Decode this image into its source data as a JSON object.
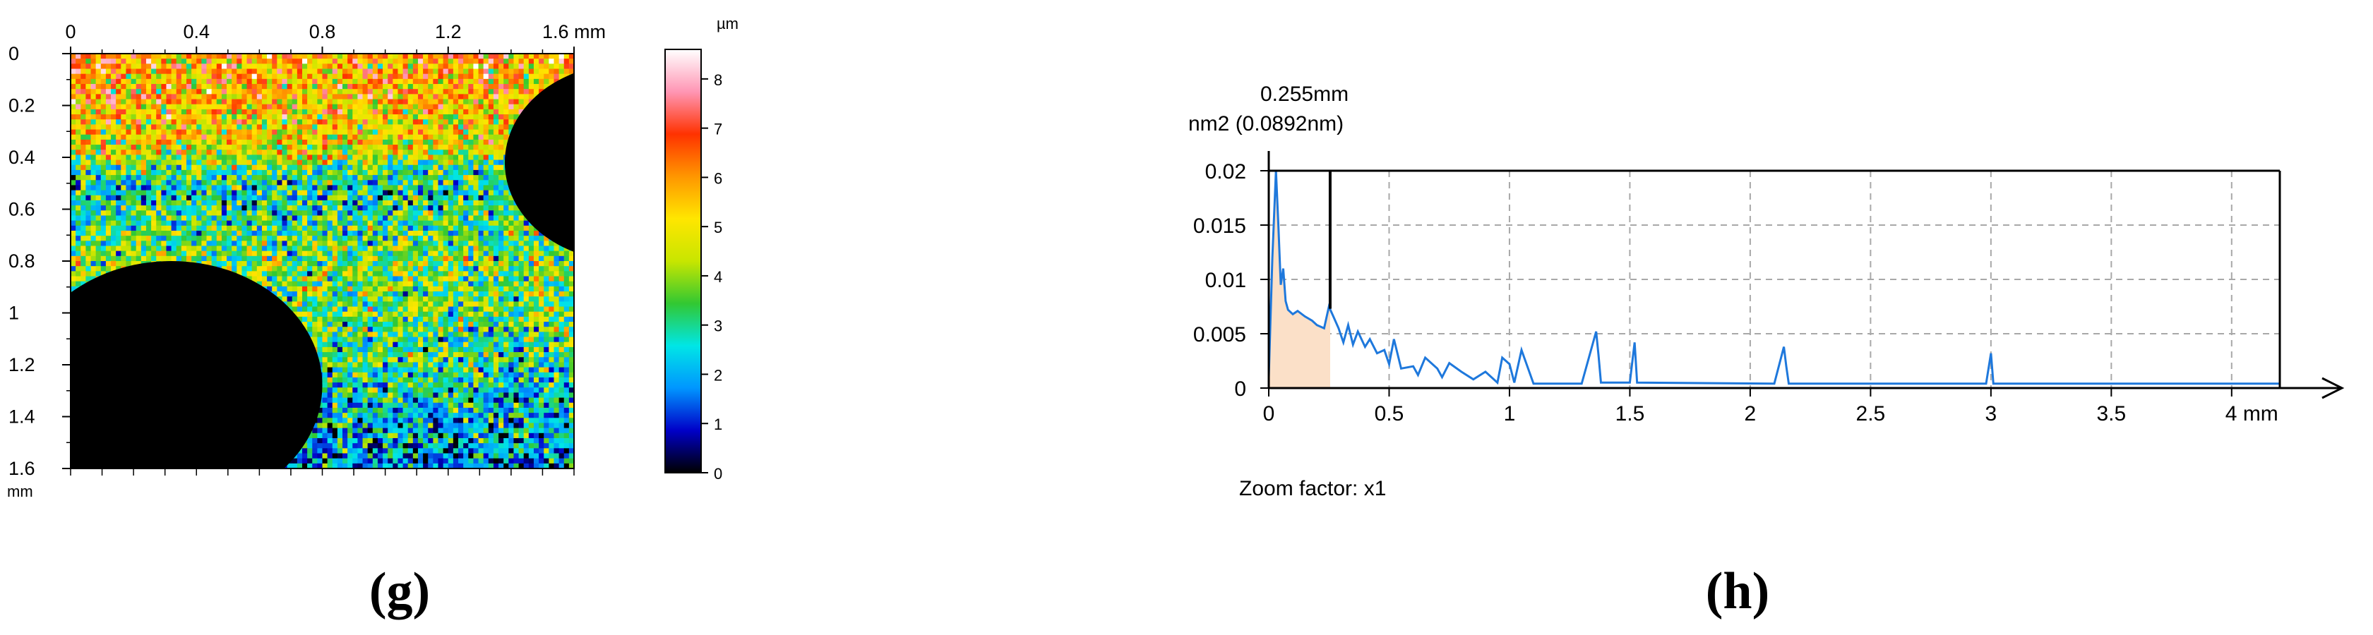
{
  "chart_data": [
    {
      "type": "heatmap",
      "panel_label": "(g)",
      "x_ticks": [
        "0",
        "0.4",
        "0.8",
        "1.2",
        "1.6 mm"
      ],
      "y_ticks": [
        "0",
        "0.2",
        "0.4",
        "0.6",
        "0.8",
        "1",
        "1.2",
        "1.4",
        "1.6"
      ],
      "y_unit": "mm",
      "xlim": [
        0,
        1.6
      ],
      "ylim": [
        0,
        1.6
      ],
      "colorbar": {
        "unit": "µm",
        "ticks": [
          "0",
          "1",
          "2",
          "3",
          "4",
          "5",
          "6",
          "7",
          "8"
        ],
        "range": [
          0,
          8.6
        ],
        "stops": [
          "#000000",
          "#0000c8",
          "#0096ff",
          "#00e6e6",
          "#32c832",
          "#c8e600",
          "#ffe600",
          "#ff9600",
          "#ff3200",
          "#ff96b4",
          "#ffffff"
        ]
      },
      "masked_regions": [
        {
          "shape": "circle",
          "cx": 0.32,
          "cy": 1.28,
          "r": 0.48
        },
        {
          "shape": "circle",
          "cx": 1.76,
          "cy": 0.42,
          "r": 0.38
        }
      ],
      "surface_trend": [
        {
          "y": 0.0,
          "mean": 6.0
        },
        {
          "y": 0.35,
          "mean": 5.0
        },
        {
          "y": 0.5,
          "mean": 2.6
        },
        {
          "y": 0.8,
          "mean": 3.8
        },
        {
          "y": 1.1,
          "mean": 3.5
        },
        {
          "y": 1.3,
          "mean": 2.6
        },
        {
          "y": 1.6,
          "mean": 1.6
        }
      ]
    },
    {
      "type": "line",
      "panel_label": "(h)",
      "x_ticks": [
        "0",
        "0.5",
        "1",
        "1.5",
        "2",
        "2.5",
        "3",
        "3.5",
        "4 mm"
      ],
      "y_ticks": [
        "0",
        "0.005",
        "0.01",
        "0.015",
        "0.02"
      ],
      "xlim": [
        0,
        4.2
      ],
      "ylim": [
        0,
        0.02
      ],
      "grid": true,
      "cursor": {
        "x": 0.255,
        "label_top": "0.255mm",
        "label_bottom": "nm2 (0.0892nm)"
      },
      "footer": "Zoom factor: x1",
      "series": [
        {
          "color": "#1e78dc",
          "fill": "#fbe0c8",
          "x": [
            0.0,
            0.015,
            0.03,
            0.04,
            0.05,
            0.06,
            0.07,
            0.08,
            0.1,
            0.12,
            0.15,
            0.18,
            0.2,
            0.23,
            0.25,
            0.27,
            0.29,
            0.31,
            0.33,
            0.35,
            0.37,
            0.4,
            0.42,
            0.45,
            0.48,
            0.5,
            0.52,
            0.55,
            0.6,
            0.62,
            0.65,
            0.7,
            0.72,
            0.75,
            0.8,
            0.85,
            0.9,
            0.95,
            0.97,
            1.0,
            1.02,
            1.05,
            1.1,
            1.3,
            1.36,
            1.37,
            1.38,
            1.5,
            1.52,
            1.53,
            2.1,
            2.14,
            2.15,
            2.16,
            2.98,
            3.0,
            3.01,
            4.2
          ],
          "y": [
            0.001,
            0.012,
            0.02,
            0.015,
            0.0095,
            0.011,
            0.008,
            0.0072,
            0.0068,
            0.0071,
            0.0066,
            0.0062,
            0.0058,
            0.0055,
            0.0075,
            0.0065,
            0.0055,
            0.0042,
            0.0058,
            0.004,
            0.0052,
            0.0038,
            0.0045,
            0.0032,
            0.0035,
            0.0022,
            0.0045,
            0.0018,
            0.002,
            0.0012,
            0.0028,
            0.0018,
            0.001,
            0.0023,
            0.0015,
            0.0008,
            0.0015,
            0.0005,
            0.0028,
            0.0022,
            0.0005,
            0.0035,
            0.0004,
            0.0004,
            0.0052,
            0.003,
            0.0005,
            0.0005,
            0.0042,
            0.0005,
            0.0004,
            0.0038,
            0.002,
            0.0004,
            0.0004,
            0.0032,
            0.0004,
            0.0004
          ]
        }
      ]
    }
  ]
}
